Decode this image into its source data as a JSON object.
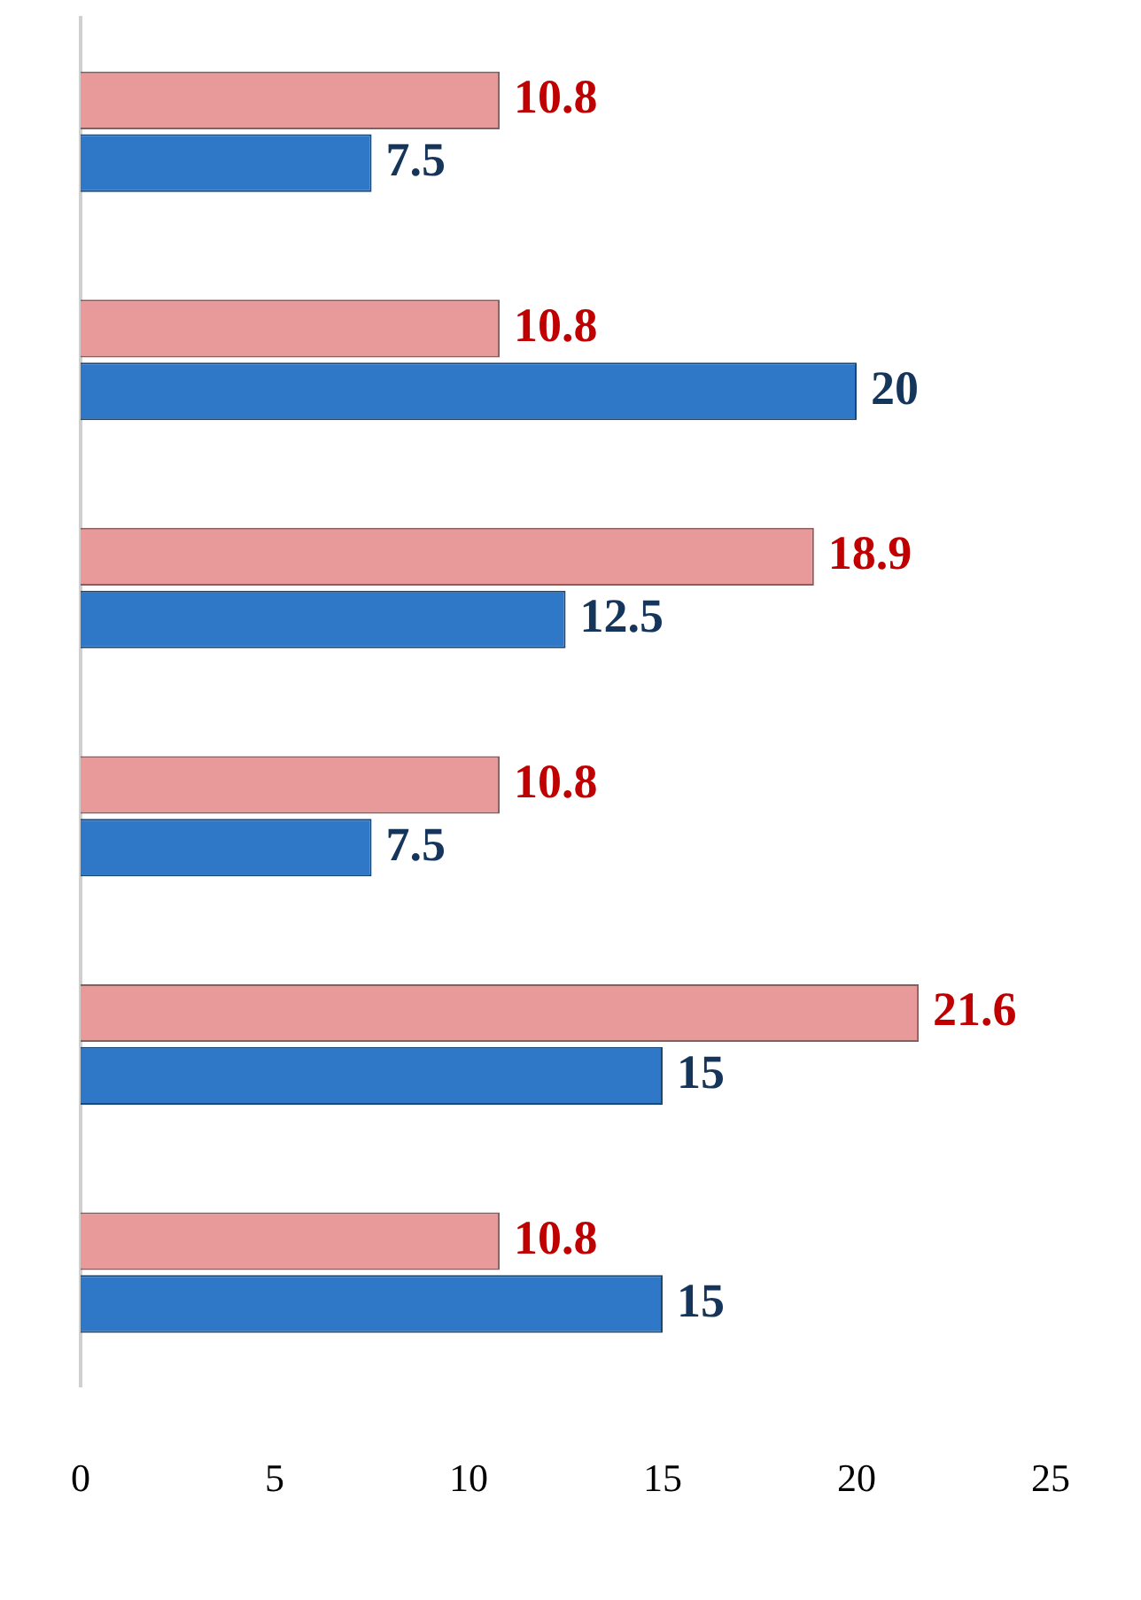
{
  "chart_data": {
    "type": "bar",
    "orientation": "horizontal",
    "categories": [
      null,
      null,
      null,
      null,
      null,
      null
    ],
    "series": [
      {
        "color": "#e89a9a",
        "values": [
          10.8,
          10.8,
          18.9,
          10.8,
          21.6,
          10.8
        ]
      },
      {
        "color": "#2f78c8",
        "values": [
          7.5,
          20,
          12.5,
          7.5,
          15,
          15
        ]
      }
    ],
    "xlim": [
      0,
      25
    ],
    "xticks": [
      0,
      5,
      10,
      15,
      20,
      25
    ],
    "data_labels": true,
    "legend": false,
    "tick_labels": "x"
  }
}
